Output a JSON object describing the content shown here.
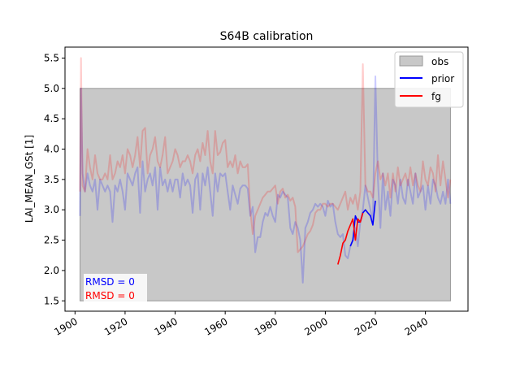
{
  "chart_data": {
    "type": "line",
    "title": "S64B calibration",
    "xlabel": "",
    "ylabel": "LAI_MEAN_GSt [1]",
    "xlim": [
      1896,
      2057
    ],
    "ylim": [
      1.33,
      5.68
    ],
    "x_ticks": [
      "1900",
      "1920",
      "1940",
      "1960",
      "1980",
      "2000",
      "2020",
      "2040"
    ],
    "y_ticks": [
      "1.5",
      "2.0",
      "2.5",
      "3.0",
      "3.5",
      "4.0",
      "4.5",
      "5.0",
      "5.5"
    ],
    "legend": {
      "placement": "top-right",
      "entries": [
        "obs",
        "prior",
        "fg"
      ]
    },
    "colors": {
      "obs_fill": "#c8c8c8",
      "prior": "#0000ff",
      "fg": "#ff0000"
    },
    "obs_band": {
      "x0": 1902,
      "x1": 2050,
      "y0": 1.5,
      "y1": 5.0
    },
    "annotations": [
      {
        "text": "RMSD = 0",
        "color": "#0000ff"
      },
      {
        "text": "RMSD = 0",
        "color": "#ff0000"
      }
    ],
    "series": [
      {
        "name": "prior",
        "style": "faint",
        "x": [
          1902,
          1902.4,
          1903,
          1904,
          1905,
          1906,
          1907,
          1908,
          1909,
          1910,
          1911,
          1912,
          1913,
          1914,
          1915,
          1916,
          1917,
          1918,
          1919,
          1920,
          1921,
          1922,
          1923,
          1924,
          1925,
          1926,
          1927,
          1928,
          1929,
          1930,
          1931,
          1932,
          1933,
          1934,
          1935,
          1936,
          1937,
          1938,
          1939,
          1940,
          1941,
          1942,
          1943,
          1944,
          1945,
          1946,
          1947,
          1948,
          1949,
          1950,
          1951,
          1952,
          1953,
          1954,
          1955,
          1956,
          1957,
          1958,
          1959,
          1960,
          1961,
          1962,
          1963,
          1964,
          1965,
          1966,
          1967,
          1968,
          1969,
          1970,
          1971,
          1972,
          1973,
          1974,
          1975,
          1976,
          1977,
          1978,
          1979,
          1980,
          1981,
          1982,
          1983,
          1984,
          1985,
          1986,
          1987,
          1988,
          1989,
          1990,
          1991,
          1992,
          1993,
          1994,
          1995,
          1996,
          1997,
          1998,
          1999,
          2000,
          2001,
          2002,
          2003,
          2004,
          2005,
          2006,
          2007,
          2008,
          2009,
          2010,
          2011,
          2012,
          2013,
          2014,
          2015,
          2016,
          2017,
          2018,
          2019,
          2020,
          2021,
          2022,
          2023,
          2024,
          2025,
          2026,
          2027,
          2028,
          2029,
          2030,
          2031,
          2032,
          2033,
          2034,
          2035,
          2036,
          2037,
          2038,
          2039,
          2040,
          2041,
          2042,
          2043,
          2044,
          2045,
          2046,
          2047,
          2048,
          2049,
          2050
        ],
        "y": [
          2.9,
          5.0,
          3.6,
          3.3,
          3.6,
          3.4,
          3.3,
          3.5,
          3.0,
          3.5,
          3.4,
          3.3,
          3.4,
          3.3,
          2.8,
          3.4,
          3.3,
          3.5,
          3.3,
          3.0,
          3.6,
          3.5,
          3.4,
          3.6,
          3.7,
          2.95,
          3.8,
          3.3,
          3.5,
          3.6,
          3.4,
          3.7,
          3.0,
          3.7,
          3.4,
          3.5,
          3.3,
          3.5,
          3.3,
          3.5,
          3.5,
          3.2,
          3.6,
          3.4,
          3.5,
          3.4,
          2.95,
          3.5,
          3.6,
          3.0,
          3.6,
          3.4,
          3.7,
          3.3,
          2.9,
          3.6,
          3.3,
          3.6,
          3.55,
          3.6,
          3.3,
          3.0,
          3.4,
          3.25,
          3.1,
          3.35,
          3.4,
          3.4,
          3.35,
          2.9,
          3.05,
          2.3,
          2.55,
          2.55,
          2.8,
          2.95,
          2.9,
          3.05,
          2.9,
          2.8,
          3.25,
          3.2,
          3.3,
          3.25,
          3.2,
          2.7,
          2.6,
          2.8,
          2.7,
          2.5,
          1.8,
          2.7,
          2.8,
          2.95,
          3.0,
          3.1,
          3.05,
          3.1,
          3.05,
          2.9,
          3.15,
          3.05,
          3.1,
          2.8,
          2.6,
          2.55,
          2.6,
          2.25,
          2.2,
          2.4,
          2.5,
          2.7,
          2.4,
          2.8,
          3.0,
          3.4,
          3.2,
          3.0,
          2.8,
          5.2,
          3.5,
          2.7,
          3.6,
          3.0,
          3.3,
          2.9,
          3.5,
          3.4,
          3.1,
          3.5,
          3.2,
          3.1,
          3.5,
          3.3,
          3.1,
          3.6,
          3.2,
          3.3,
          3.4,
          3.0,
          3.4,
          3.1,
          3.5,
          3.4,
          3.2,
          3.1,
          3.3,
          3.1,
          3.5,
          3.1
        ]
      },
      {
        "name": "fg",
        "style": "faint",
        "x": [
          1902,
          1902.4,
          1903,
          1904,
          1905,
          1906,
          1907,
          1908,
          1909,
          1910,
          1911,
          1912,
          1913,
          1914,
          1915,
          1916,
          1917,
          1918,
          1919,
          1920,
          1921,
          1922,
          1923,
          1924,
          1925,
          1926,
          1927,
          1928,
          1929,
          1930,
          1931,
          1932,
          1933,
          1934,
          1935,
          1936,
          1937,
          1938,
          1939,
          1940,
          1941,
          1942,
          1943,
          1944,
          1945,
          1946,
          1947,
          1948,
          1949,
          1950,
          1951,
          1952,
          1953,
          1954,
          1955,
          1956,
          1957,
          1958,
          1959,
          1960,
          1961,
          1962,
          1963,
          1964,
          1965,
          1966,
          1967,
          1968,
          1969,
          1970,
          1971,
          1972,
          1973,
          1974,
          1975,
          1976,
          1977,
          1978,
          1979,
          1980,
          1981,
          1982,
          1983,
          1984,
          1985,
          1986,
          1987,
          1988,
          1989,
          1990,
          1991,
          1992,
          1993,
          1994,
          1995,
          1996,
          1997,
          1998,
          1999,
          2000,
          2001,
          2002,
          2003,
          2004,
          2005,
          2006,
          2007,
          2008,
          2009,
          2010,
          2011,
          2012,
          2013,
          2014,
          2015,
          2016,
          2017,
          2018,
          2019,
          2020,
          2021,
          2022,
          2023,
          2024,
          2025,
          2026,
          2027,
          2028,
          2029,
          2030,
          2031,
          2032,
          2033,
          2034,
          2035,
          2036,
          2037,
          2038,
          2039,
          2040,
          2041,
          2042,
          2043,
          2044,
          2045,
          2046,
          2047,
          2048,
          2049,
          2050
        ],
        "y": [
          3.3,
          5.5,
          3.4,
          3.3,
          4.0,
          3.7,
          3.5,
          3.9,
          3.6,
          3.5,
          3.5,
          3.6,
          3.5,
          3.9,
          3.5,
          3.6,
          3.8,
          3.7,
          3.9,
          3.6,
          4.0,
          3.9,
          3.7,
          3.9,
          4.2,
          3.7,
          4.3,
          4.35,
          3.6,
          3.9,
          4.0,
          4.2,
          3.8,
          3.7,
          3.9,
          4.2,
          3.6,
          3.7,
          3.8,
          4.0,
          3.9,
          3.7,
          3.8,
          3.8,
          3.9,
          3.8,
          3.6,
          3.9,
          4.0,
          3.8,
          4.1,
          3.9,
          4.3,
          3.8,
          3.6,
          4.3,
          3.9,
          3.95,
          4.1,
          4.15,
          3.7,
          3.8,
          3.7,
          3.9,
          3.6,
          3.8,
          3.7,
          3.7,
          3.75,
          3.0,
          2.6,
          2.9,
          3.0,
          3.1,
          3.2,
          3.25,
          3.3,
          3.3,
          3.35,
          3.4,
          3.1,
          3.3,
          3.35,
          3.2,
          3.25,
          3.15,
          3.2,
          3.05,
          2.3,
          2.35,
          2.4,
          2.5,
          2.6,
          2.65,
          2.75,
          2.95,
          3.0,
          3.0,
          3.1,
          3.1,
          3.05,
          3.1,
          3.1,
          3.05,
          3.0,
          3.1,
          3.2,
          3.3,
          3.0,
          3.2,
          3.1,
          3.25,
          3.0,
          3.3,
          5.4,
          3.4,
          3.3,
          3.3,
          3.2,
          3.6,
          3.8,
          3.5,
          3.6,
          3.4,
          3.6,
          3.2,
          3.6,
          3.3,
          3.7,
          3.4,
          3.5,
          3.6,
          3.4,
          3.7,
          3.4,
          3.6,
          3.4,
          3.3,
          3.8,
          3.5,
          3.4,
          3.7,
          3.6,
          3.3,
          3.9,
          3.4,
          3.8,
          3.5,
          3.2,
          3.5
        ]
      },
      {
        "name": "prior",
        "style": "solid",
        "x": [
          2010,
          2011,
          2012,
          2013,
          2014,
          2015,
          2016,
          2017,
          2018,
          2019,
          2020
        ],
        "y": [
          2.4,
          2.5,
          2.9,
          2.8,
          2.8,
          2.95,
          3.0,
          2.95,
          2.9,
          2.75,
          3.15
        ]
      },
      {
        "name": "fg",
        "style": "solid",
        "x": [
          2005,
          2006,
          2007,
          2008,
          2009,
          2010,
          2011,
          2012,
          2013,
          2014,
          2015
        ],
        "y": [
          2.1,
          2.25,
          2.45,
          2.5,
          2.65,
          2.75,
          2.85,
          2.5,
          2.85,
          2.8,
          2.95
        ]
      }
    ]
  }
}
